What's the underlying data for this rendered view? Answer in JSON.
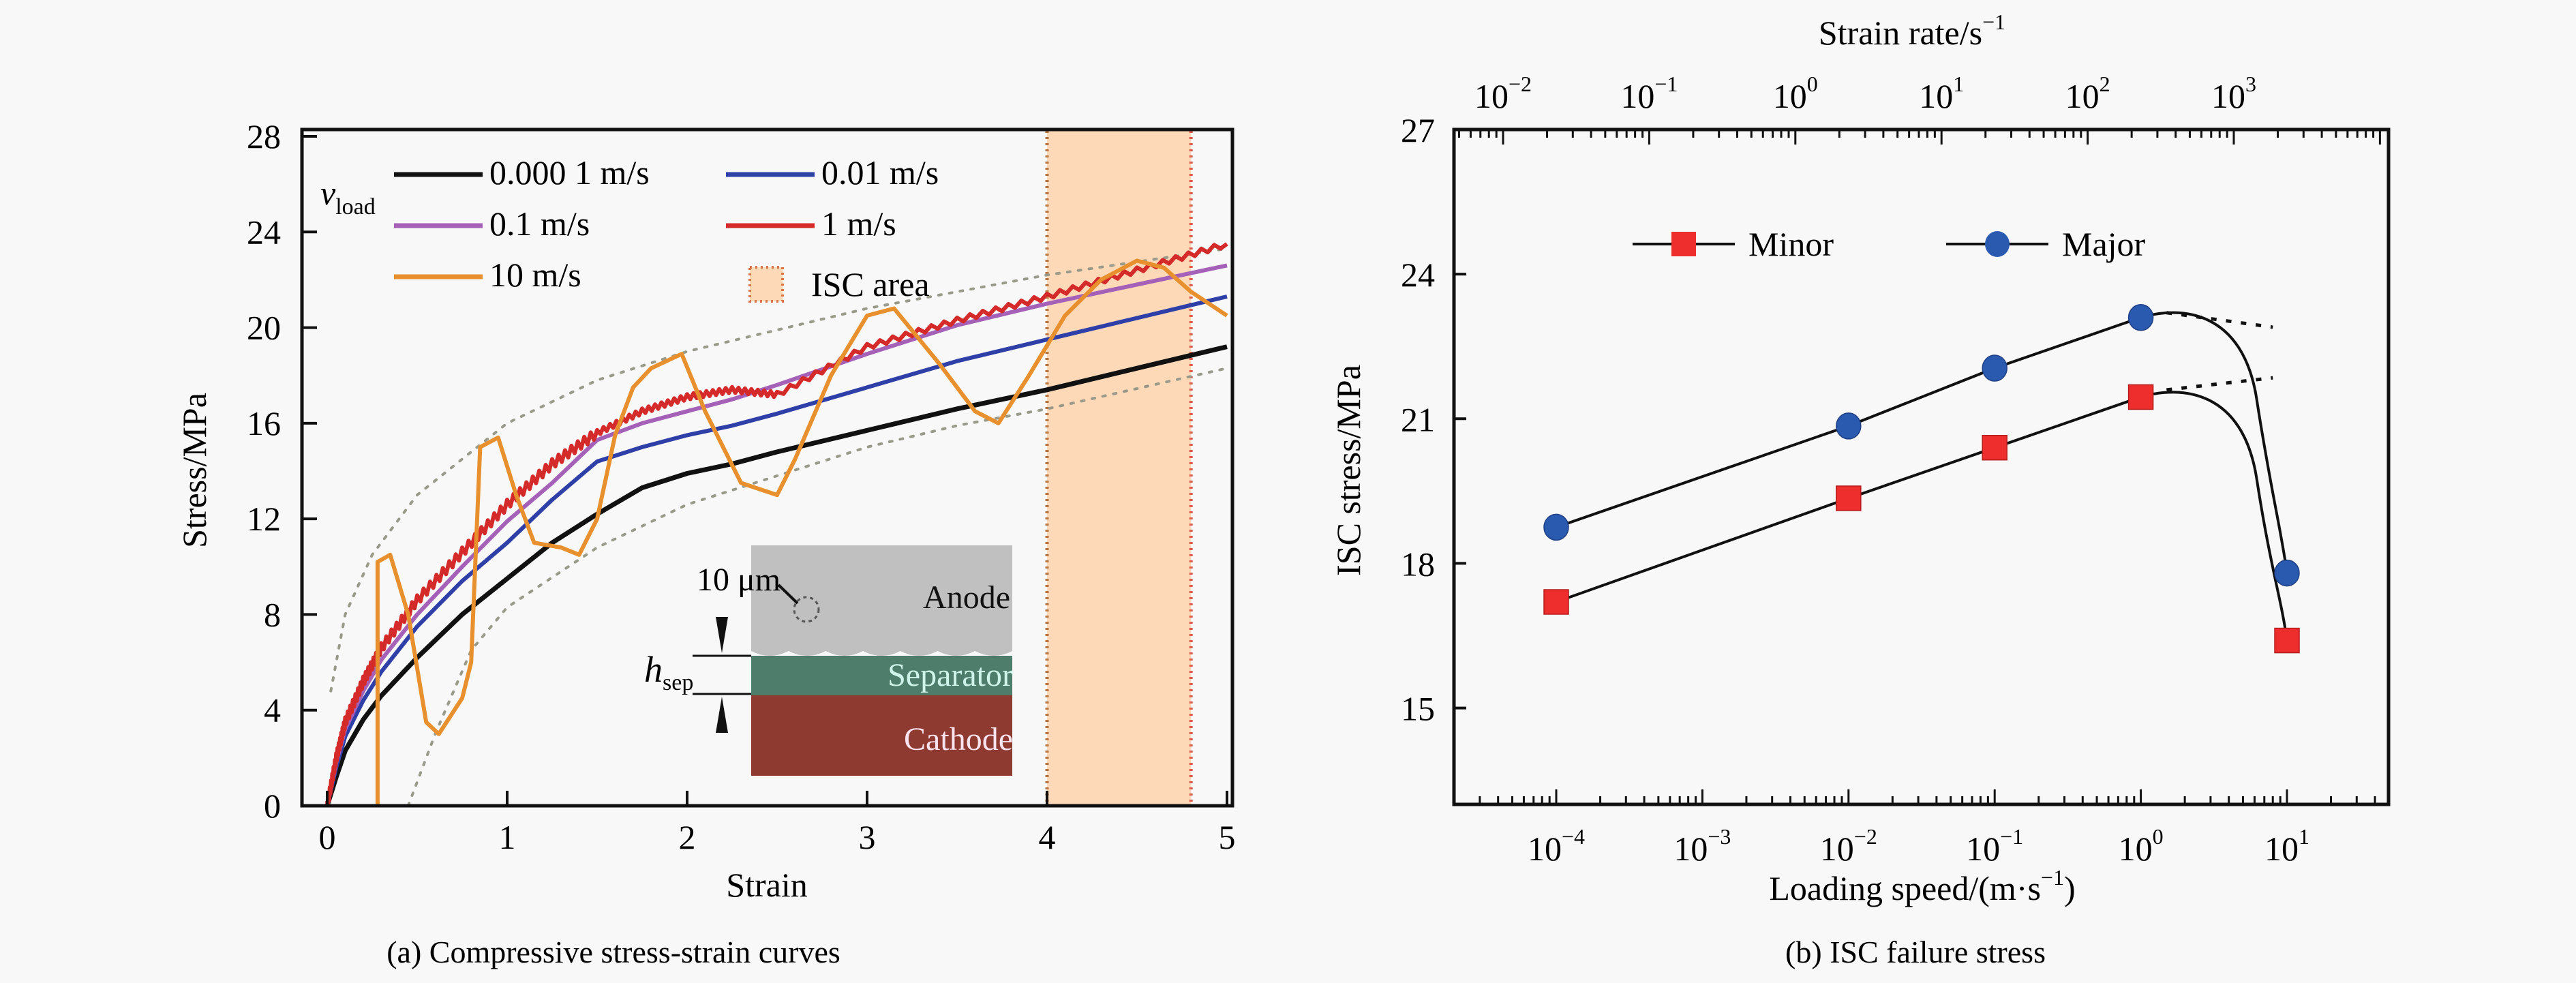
{
  "chart_data": [
    {
      "id": "a",
      "type": "line",
      "caption": "(a) Compressive stress-strain curves",
      "xlabel": "Strain",
      "ylabel": "Stress/MPa",
      "xlim": [
        0,
        5
      ],
      "ylim": [
        0,
        29
      ],
      "xticks": [
        0,
        1,
        2,
        3,
        4,
        5
      ],
      "xtick_labels": [
        "0",
        "1",
        "2",
        "3",
        "4",
        "5"
      ],
      "yticks": [
        0,
        4,
        8,
        12,
        16,
        20,
        24,
        28
      ],
      "ytick_labels": [
        "0",
        "4",
        "8",
        "12",
        "16",
        "20",
        "24",
        "28"
      ],
      "grid": false,
      "legend_title": "v",
      "legend_title_sub": "load",
      "legend_placement": "top-left",
      "series": [
        {
          "name": "0.000 1 m/s",
          "color": "#111111",
          "x": [
            0,
            0.05,
            0.1,
            0.2,
            0.3,
            0.5,
            0.75,
            1.0,
            1.25,
            1.5,
            1.75,
            2.0,
            2.25,
            2.5,
            3.0,
            3.5,
            4.0,
            4.5,
            5.0
          ],
          "y": [
            0,
            1.2,
            2.3,
            3.6,
            4.6,
            6.2,
            8.0,
            9.5,
            11.0,
            12.2,
            13.3,
            13.9,
            14.3,
            14.8,
            15.7,
            16.6,
            17.4,
            18.3,
            19.2
          ]
        },
        {
          "name": "0.01 m/s",
          "color": "#2f3fa8",
          "x": [
            0,
            0.05,
            0.1,
            0.2,
            0.3,
            0.5,
            0.75,
            1.0,
            1.25,
            1.5,
            1.75,
            2.0,
            2.25,
            2.5,
            3.0,
            3.5,
            4.0,
            4.5,
            5.0
          ],
          "y": [
            0,
            1.6,
            2.9,
            4.4,
            5.6,
            7.5,
            9.4,
            11.0,
            12.8,
            14.4,
            15.0,
            15.5,
            15.9,
            16.4,
            17.5,
            18.6,
            19.5,
            20.4,
            21.3
          ]
        },
        {
          "name": "0.1 m/s",
          "color": "#a561b8",
          "x": [
            0,
            0.05,
            0.1,
            0.2,
            0.3,
            0.5,
            0.75,
            1.0,
            1.25,
            1.5,
            1.75,
            2.0,
            2.25,
            2.5,
            3.0,
            3.5,
            4.0,
            4.5,
            5.0
          ],
          "y": [
            0,
            1.8,
            3.2,
            4.8,
            6.1,
            8.0,
            10.0,
            11.9,
            13.5,
            15.3,
            16.0,
            16.5,
            17.0,
            17.6,
            18.9,
            20.1,
            21.0,
            21.8,
            22.6
          ]
        },
        {
          "name": "1 m/s",
          "color": "#d42a2a",
          "x": [
            0,
            0.05,
            0.1,
            0.2,
            0.3,
            0.5,
            0.75,
            1.0,
            1.25,
            1.5,
            1.75,
            2.0,
            2.25,
            2.5,
            3.0,
            3.5,
            4.0,
            4.5,
            5.0
          ],
          "y": [
            0,
            2.0,
            3.5,
            5.2,
            6.6,
            8.6,
            10.6,
            12.6,
            14.3,
            15.6,
            16.5,
            17.1,
            17.4,
            17.2,
            19.2,
            20.3,
            21.3,
            22.4,
            23.5
          ]
        },
        {
          "name": "10 m/s",
          "color": "#e8902e",
          "x": [
            0.28,
            0.28,
            0.35,
            0.45,
            0.55,
            0.62,
            0.75,
            0.8,
            0.85,
            0.95,
            1.05,
            1.15,
            1.3,
            1.4,
            1.5,
            1.6,
            1.7,
            1.8,
            1.97,
            2.1,
            2.3,
            2.5,
            2.6,
            2.8,
            3.0,
            3.15,
            3.4,
            3.6,
            3.73,
            3.9,
            4.1,
            4.3,
            4.5,
            4.65,
            4.8,
            5.0
          ],
          "y": [
            0,
            10.2,
            10.5,
            8.0,
            3.5,
            3.0,
            4.5,
            6.0,
            15.0,
            15.4,
            13.0,
            11.0,
            10.8,
            10.5,
            12.0,
            15.5,
            17.5,
            18.3,
            18.9,
            16.5,
            13.5,
            13.0,
            14.5,
            18.0,
            20.5,
            20.8,
            18.5,
            16.5,
            16.0,
            18.0,
            20.5,
            22.0,
            22.8,
            22.5,
            21.5,
            20.5
          ]
        }
      ],
      "envelope": {
        "style": "dotted",
        "upper": {
          "x": [
            0.02,
            0.1,
            0.25,
            0.5,
            1.0,
            1.5,
            2.0,
            3.0,
            4.0,
            5.0
          ],
          "y": [
            4.8,
            8.0,
            10.5,
            13.0,
            16.0,
            17.8,
            19.0,
            20.8,
            22.2,
            23.3
          ]
        },
        "lower": {
          "x": [
            0.45,
            0.6,
            0.8,
            1.0,
            1.5,
            2.0,
            2.5,
            3.0,
            3.5,
            4.0,
            5.0
          ],
          "y": [
            0,
            3.0,
            6.5,
            8.3,
            10.8,
            12.6,
            13.8,
            15.0,
            15.9,
            16.6,
            18.3
          ]
        }
      },
      "isc_area": {
        "label": "ISC area",
        "x_range": [
          4.0,
          4.8
        ],
        "fill": "#fdd9b8",
        "border": "#d9734a"
      },
      "inset": {
        "labels": {
          "scale": "10 μm",
          "anode": "Anode",
          "separator": "Separator",
          "cathode": "Cathode",
          "h": "h",
          "h_sub": "sep"
        },
        "colors": {
          "anode": "#c0c0c0",
          "separator": "#4e7d6b",
          "cathode": "#8f3a30"
        }
      }
    },
    {
      "id": "b",
      "type": "line",
      "caption": "(b) ISC failure stress",
      "xlabel": "Loading speed/(m·s",
      "xlabel_sup": "−1",
      "xlabel_tail": ")",
      "x2label": "Strain rate/s",
      "x2label_sup": "−1",
      "ylabel": "ISC stress/MPa",
      "xscale": "log",
      "xlim": [
        4.5e-06,
        45
      ],
      "ylim": [
        13,
        27
      ],
      "xticks": [
        0.0001,
        0.001,
        0.01,
        0.1,
        1,
        10
      ],
      "xtick_labels": [
        {
          "base": "10",
          "exp": "−4"
        },
        {
          "base": "10",
          "exp": "−3"
        },
        {
          "base": "10",
          "exp": "−2"
        },
        {
          "base": "10",
          "exp": "−1"
        },
        {
          "base": "10",
          "exp": "0"
        },
        {
          "base": "10",
          "exp": "1"
        }
      ],
      "x2ticks_labels": [
        {
          "base": "10",
          "exp": "−2"
        },
        {
          "base": "10",
          "exp": "−1"
        },
        {
          "base": "10",
          "exp": "0"
        },
        {
          "base": "10",
          "exp": "1"
        },
        {
          "base": "10",
          "exp": "2"
        },
        {
          "base": "10",
          "exp": "3"
        }
      ],
      "yticks": [
        15,
        18,
        21,
        24,
        27
      ],
      "ytick_labels": [
        "15",
        "18",
        "21",
        "24",
        "27"
      ],
      "grid": false,
      "legend_placement": "top-center",
      "series": [
        {
          "name": "Minor",
          "marker": "square",
          "color": "#ee2d2d",
          "x": [
            0.0001,
            0.01,
            0.1,
            1,
            10
          ],
          "y": [
            17.2,
            19.35,
            20.4,
            21.45,
            16.4
          ]
        },
        {
          "name": "Major",
          "marker": "circle",
          "color": "#2a5ab0",
          "x": [
            0.0001,
            0.01,
            0.1,
            1,
            10
          ],
          "y": [
            18.75,
            20.85,
            22.05,
            23.1,
            17.8
          ]
        }
      ],
      "extrapolation_dotted": [
        {
          "series": "Major",
          "x": [
            1.5,
            8
          ],
          "y": [
            23.2,
            22.9
          ]
        },
        {
          "series": "Minor",
          "x": [
            1.5,
            8
          ],
          "y": [
            21.6,
            21.85
          ]
        }
      ]
    }
  ]
}
